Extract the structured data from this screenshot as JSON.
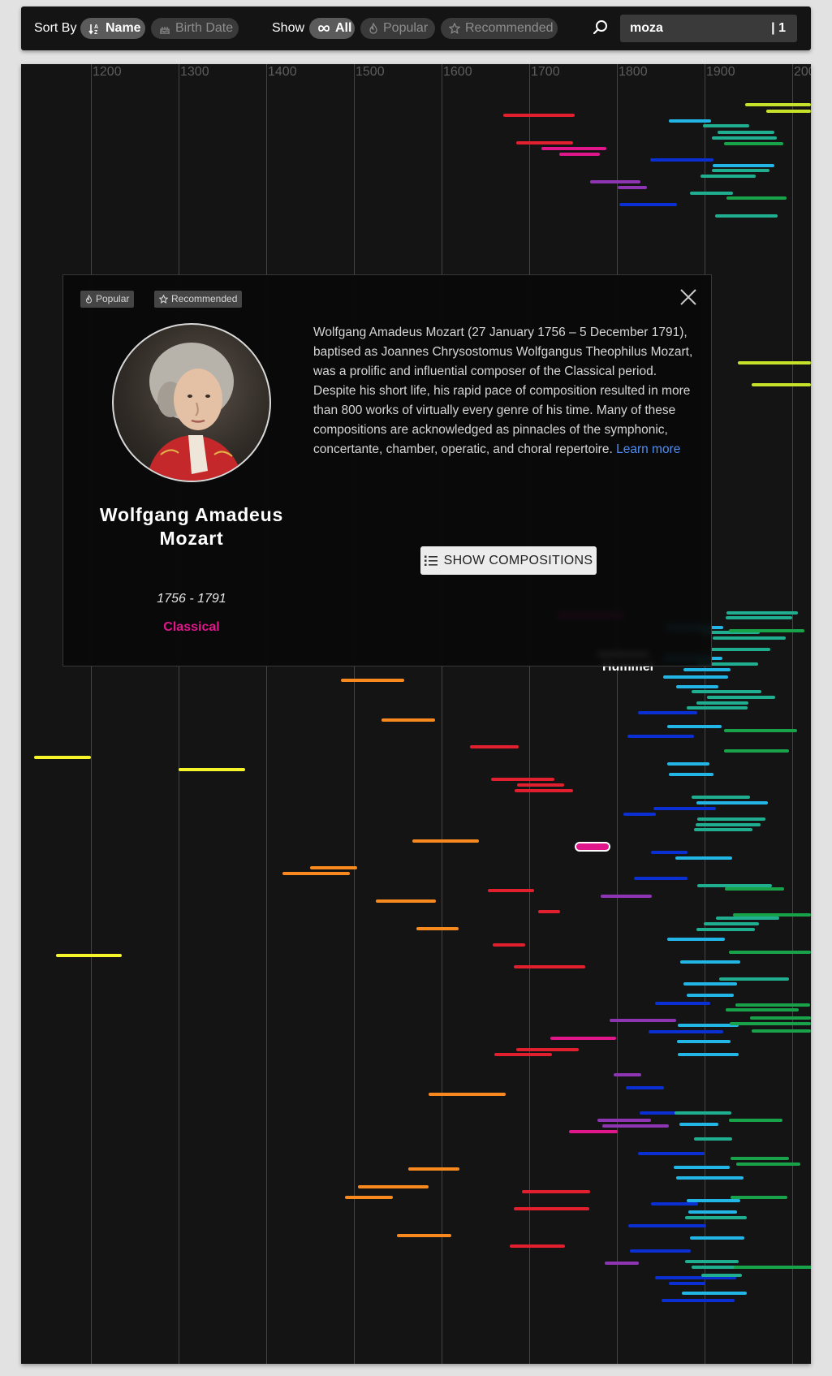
{
  "toolbar": {
    "sort_label": "Sort By",
    "sort_name": "Name",
    "sort_birth": "Birth Date",
    "show_label": "Show",
    "show_all": "All",
    "show_popular": "Popular",
    "show_recommended": "Recommended",
    "search_value": "moza",
    "search_count": "| 1"
  },
  "timeline": {
    "years": [
      "1200",
      "1300",
      "1400",
      "1500",
      "1600",
      "1700",
      "1800",
      "1900",
      "200"
    ],
    "hover_label": "Hummel"
  },
  "modal": {
    "badges": {
      "popular": "Popular",
      "recommended": "Recommended"
    },
    "name": "Wolfgang Amadeus Mozart",
    "years": "1756 - 1791",
    "era": "Classical",
    "bio": "Wolfgang Amadeus Mozart (27 January 1756 – 5 December 1791), baptised as Joannes Chrysostomus Wolfgangus Theophilus Mozart, was a prolific and influential composer of the Classical period. Despite his short life, his rapid pace of composition resulted in more than 800 works of virtually every genre of his time. Many of these compositions are acknowledged as pinnacles of the symphonic, concertante, chamber, operatic, and choral repertoire.",
    "learn_more": "Learn more",
    "show_compositions": "SHOW COMPOSITIONS"
  },
  "colors": {
    "medieval": "#f5f52a",
    "renaissance": "#f7891f",
    "baroque": "#e21f2e",
    "classical": "#e0178a",
    "romantic_late": "#8e35b3",
    "romantic": "#0a2fd2",
    "modern_blue": "#22b6e6",
    "modern_teal": "#1fae8f",
    "modern_green": "#18a34a",
    "contemporary": "#c7e22b"
  }
}
